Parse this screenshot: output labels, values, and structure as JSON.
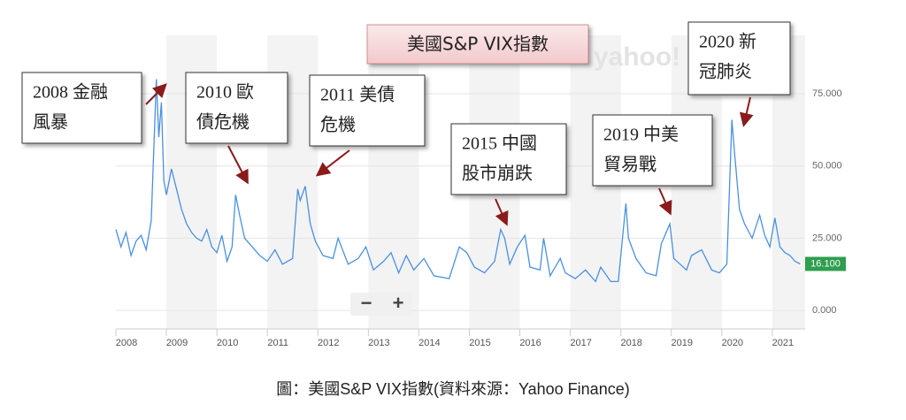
{
  "chart_data": {
    "type": "line",
    "title": "美國S&P VIX指數",
    "watermark": "yahoo!",
    "x": [
      2008.0,
      2008.1,
      2008.2,
      2008.3,
      2008.4,
      2008.5,
      2008.6,
      2008.7,
      2008.8,
      2008.85,
      2008.9,
      2008.95,
      2009.0,
      2009.1,
      2009.2,
      2009.3,
      2009.4,
      2009.5,
      2009.6,
      2009.7,
      2009.8,
      2009.9,
      2010.0,
      2010.1,
      2010.2,
      2010.3,
      2010.37,
      2010.45,
      2010.55,
      2010.7,
      2010.85,
      2011.0,
      2011.15,
      2011.3,
      2011.5,
      2011.6,
      2011.65,
      2011.75,
      2011.85,
      2011.95,
      2012.1,
      2012.3,
      2012.4,
      2012.6,
      2012.8,
      2012.95,
      2013.1,
      2013.3,
      2013.45,
      2013.6,
      2013.75,
      2013.9,
      2014.1,
      2014.3,
      2014.6,
      2014.8,
      2014.95,
      2015.1,
      2015.3,
      2015.5,
      2015.62,
      2015.7,
      2015.8,
      2015.95,
      2016.1,
      2016.2,
      2016.4,
      2016.47,
      2016.6,
      2016.8,
      2016.9,
      2017.1,
      2017.3,
      2017.5,
      2017.6,
      2017.8,
      2017.95,
      2018.1,
      2018.15,
      2018.3,
      2018.5,
      2018.7,
      2018.8,
      2018.97,
      2019.05,
      2019.3,
      2019.4,
      2019.6,
      2019.8,
      2019.95,
      2020.1,
      2020.2,
      2020.25,
      2020.35,
      2020.45,
      2020.6,
      2020.75,
      2020.85,
      2020.95,
      2021.05,
      2021.15,
      2021.25,
      2021.35,
      2021.45,
      2021.55
    ],
    "values": [
      28,
      22,
      27,
      19,
      24,
      26,
      21,
      31,
      80,
      60,
      72,
      45,
      40,
      49,
      42,
      35,
      30,
      27,
      25,
      24,
      28,
      22,
      20,
      26,
      17,
      22,
      40,
      33,
      25,
      22,
      19,
      17,
      21,
      16,
      18,
      42,
      38,
      43,
      30,
      24,
      19,
      18,
      25,
      16,
      18,
      22,
      14,
      17,
      20,
      13,
      19,
      14,
      18,
      12,
      11,
      22,
      20,
      15,
      13,
      17,
      28,
      25,
      16,
      22,
      26,
      15,
      14,
      25,
      12,
      18,
      13,
      11,
      14,
      10,
      15,
      10,
      10,
      37,
      25,
      18,
      13,
      12,
      23,
      30,
      18,
      14,
      19,
      21,
      14,
      13,
      16,
      66,
      55,
      35,
      30,
      25,
      33,
      26,
      22,
      32,
      22,
      20,
      19,
      17,
      16.1
    ],
    "color": "#4a90e2",
    "xlim": [
      2008,
      2021.65
    ],
    "xticks": [
      2008,
      2009,
      2010,
      2011,
      2012,
      2013,
      2014,
      2015,
      2016,
      2017,
      2018,
      2019,
      2020,
      2021
    ],
    "ylim": [
      -6.4,
      95.2
    ],
    "yticks": [
      {
        "value": 0,
        "label": "0.000"
      },
      {
        "value": 25,
        "label": "25.000"
      },
      {
        "value": 50,
        "label": "50.000"
      },
      {
        "value": 75,
        "label": "75.000"
      }
    ],
    "current_value": {
      "value": 16.1,
      "label": "16.100"
    },
    "grid": true,
    "annotations": [
      [
        "2008 金融",
        "風暴"
      ],
      [
        "2010 歐",
        "債危機"
      ],
      [
        "2011 美債",
        "危機"
      ],
      [
        "2015 中國",
        "股市崩跌"
      ],
      [
        "2019 中美",
        "貿易戰"
      ],
      [
        "2020 新",
        "冠肺炎"
      ]
    ]
  },
  "controls": [
    "−",
    "+"
  ],
  "caption": "圖：美國S&P VIX指數(資料來源：Yahoo Finance)"
}
